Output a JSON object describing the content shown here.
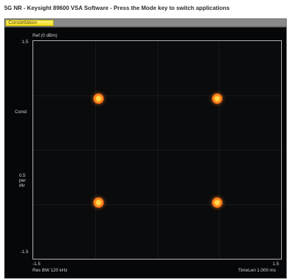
{
  "window": {
    "title": "5G NR - Keysight 89600 VSA Software - Press the Mode key to switch applications"
  },
  "tabs": [
    {
      "label": "Constellation"
    }
  ],
  "trace": {
    "top_label": "Ref (0 dBm)",
    "y_top": "1.5",
    "y_mid_upper": "Const",
    "y_mid_lower_1": "0.5",
    "y_mid_lower_2": "per",
    "y_mid_lower_3": "div",
    "y_bottom": "-1.5",
    "x_left": "-1.5",
    "x_right": "1.5",
    "bottom_left": "Res BW  120 kHz",
    "bottom_right": "TimeLen 1.000 ms"
  },
  "chart_data": {
    "type": "scatter",
    "title": "",
    "xlabel": "",
    "ylabel": "",
    "xlim": [
      -1.5,
      1.5
    ],
    "ylim": [
      -1.5,
      1.5
    ],
    "x": [
      -0.71,
      0.71,
      -0.71,
      0.71
    ],
    "y": [
      0.71,
      0.71,
      -0.71,
      -0.71
    ]
  }
}
